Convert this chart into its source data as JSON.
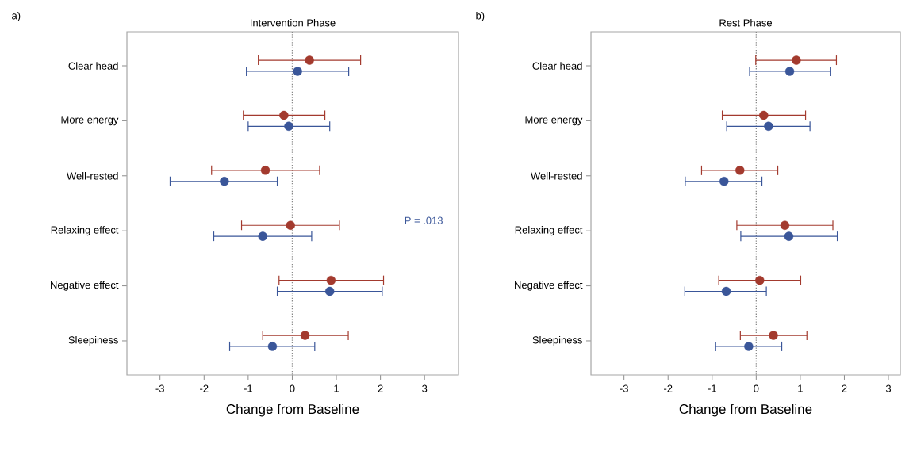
{
  "chart_data": [
    {
      "type": "scatter",
      "title": "Intervention Phase",
      "xlabel": "Change from Baseline",
      "orientation": "horizontal",
      "marker": "circle",
      "categories": [
        "Clear head",
        "More energy",
        "Well-rested",
        "Relaxing effect",
        "Negative effect",
        "Sleepiness"
      ],
      "series": [
        {
          "color": "#a33a2e",
          "values": [
            0.39,
            -0.19,
            -0.61,
            -0.04,
            0.88,
            0.29
          ],
          "errors": [
            [
              -0.77,
              1.55
            ],
            [
              -1.11,
              0.74
            ],
            [
              -1.83,
              0.62
            ],
            [
              -1.15,
              1.07
            ],
            [
              -0.3,
              2.07
            ],
            [
              -0.67,
              1.27
            ]
          ]
        },
        {
          "color": "#3a5699",
          "values": [
            0.12,
            -0.08,
            -1.54,
            -0.67,
            0.85,
            -0.45
          ],
          "errors": [
            [
              -1.04,
              1.28
            ],
            [
              -1.0,
              0.85
            ],
            [
              -2.77,
              -0.34
            ],
            [
              -1.78,
              0.44
            ],
            [
              -0.34,
              2.04
            ],
            [
              -1.42,
              0.51
            ]
          ]
        }
      ],
      "xlim": [
        -3.75,
        3.77
      ],
      "xticks": [
        -3,
        -2,
        -1,
        0,
        1,
        2,
        3
      ],
      "ref_lines": [
        {
          "axis": "x",
          "value": 0,
          "line_style": "dotted",
          "color": "#888888"
        }
      ],
      "annotations": [
        "a)",
        "P = .013"
      ]
    },
    {
      "type": "scatter",
      "title": "Rest Phase",
      "xlabel": "Change from Baseline",
      "orientation": "horizontal",
      "marker": "circle",
      "categories": [
        "Clear head",
        "More energy",
        "Well-rested",
        "Relaxing effect",
        "Negative effect",
        "Sleepiness"
      ],
      "series": [
        {
          "color": "#a33a2e",
          "values": [
            0.91,
            0.17,
            -0.37,
            0.65,
            0.08,
            0.39
          ],
          "errors": [
            [
              -0.01,
              1.82
            ],
            [
              -0.77,
              1.12
            ],
            [
              -1.24,
              0.49
            ],
            [
              -0.44,
              1.74
            ],
            [
              -0.85,
              1.01
            ],
            [
              -0.36,
              1.15
            ]
          ]
        },
        {
          "color": "#3a5699",
          "values": [
            0.76,
            0.28,
            -0.73,
            0.74,
            -0.68,
            -0.17
          ],
          "errors": [
            [
              -0.15,
              1.68
            ],
            [
              -0.67,
              1.22
            ],
            [
              -1.61,
              0.13
            ],
            [
              -0.35,
              1.84
            ],
            [
              -1.62,
              0.23
            ],
            [
              -0.92,
              0.58
            ]
          ]
        }
      ],
      "xlim": [
        -3.75,
        3.27
      ],
      "xticks": [
        -3,
        -2,
        -1,
        0,
        1,
        2,
        3
      ],
      "ref_lines": [
        {
          "axis": "x",
          "value": 0,
          "line_style": "dotted",
          "color": "#888888"
        }
      ],
      "annotations": [
        "b)"
      ]
    }
  ]
}
